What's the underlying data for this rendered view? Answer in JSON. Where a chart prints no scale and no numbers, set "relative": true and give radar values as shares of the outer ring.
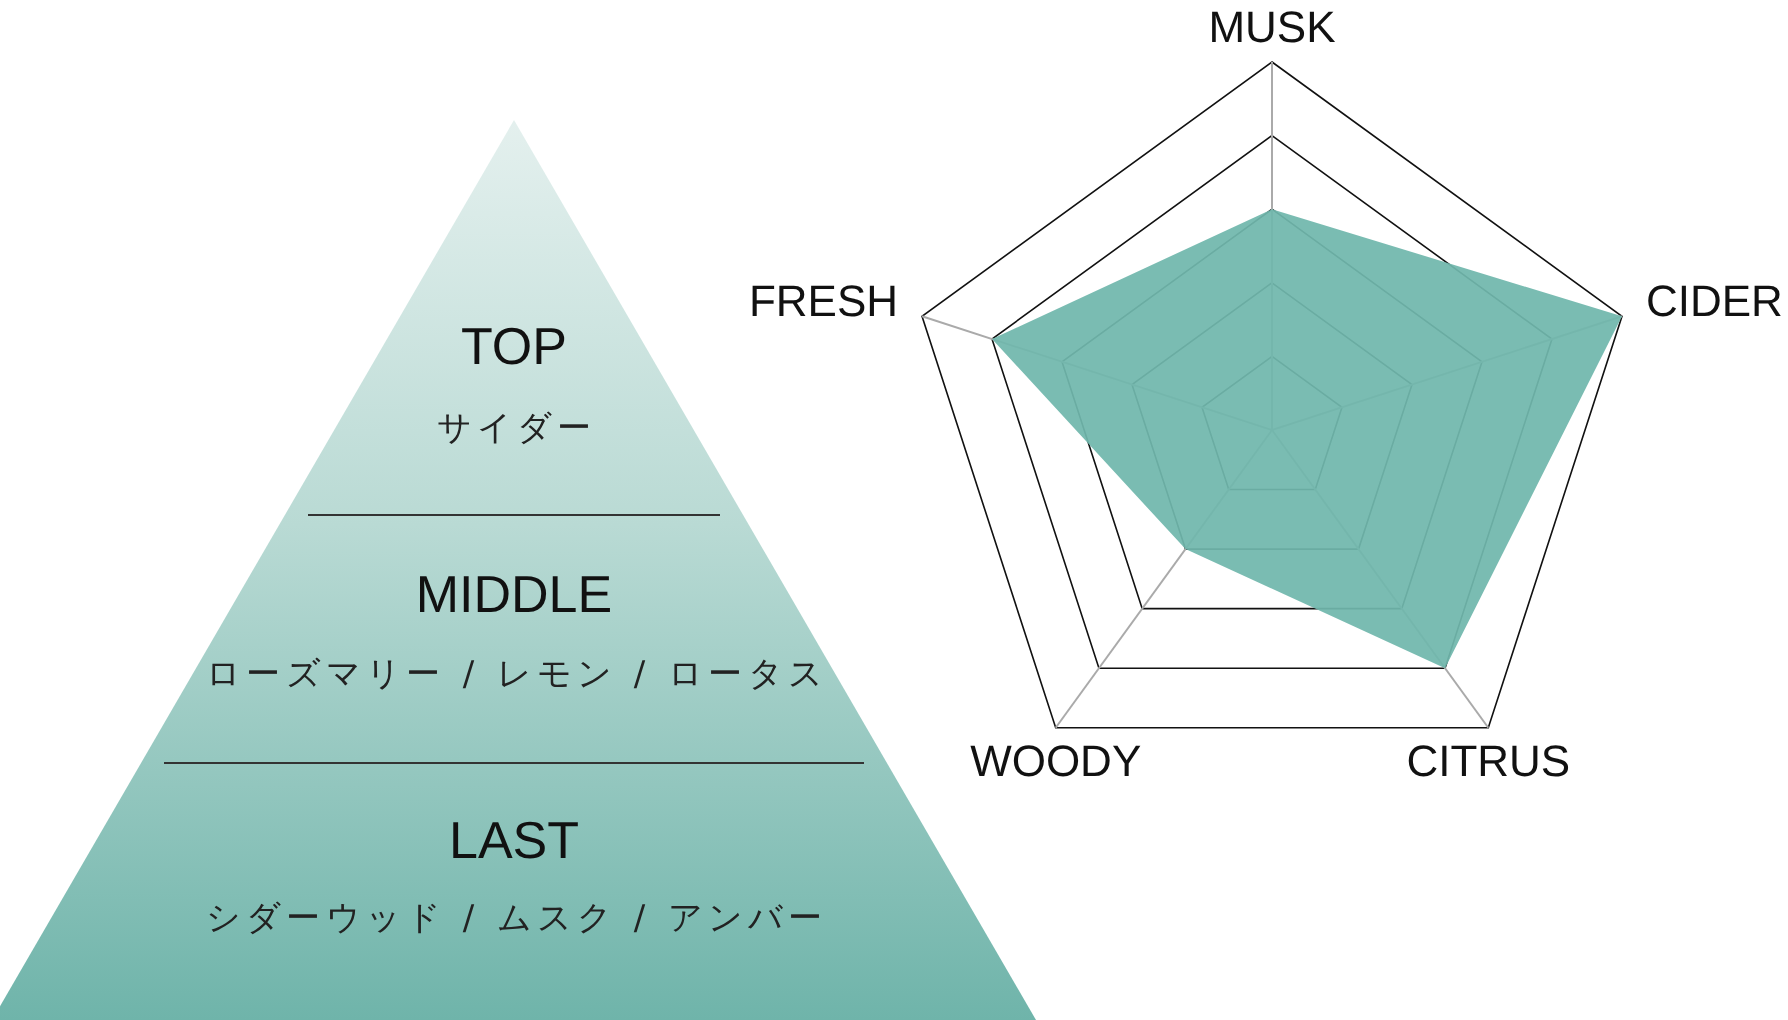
{
  "chart_data": [
    {
      "type": "other",
      "annotations": [
        "TOP",
        "サイダー",
        "MIDDLE",
        "ローズマリー / レモン / ロータス",
        "LAST",
        "シダーウッド / ムスク / アンバー"
      ]
    },
    {
      "type": "radar",
      "categories": [
        "MUSK",
        "CIDER",
        "CITRUS",
        "WOODY",
        "FRESH"
      ],
      "relative": true,
      "grid": true,
      "series": [
        {
          "color": "#70b7ad",
          "values": [
            0.6,
            1,
            0.8,
            0.4,
            0.8
          ]
        }
      ]
    }
  ]
}
